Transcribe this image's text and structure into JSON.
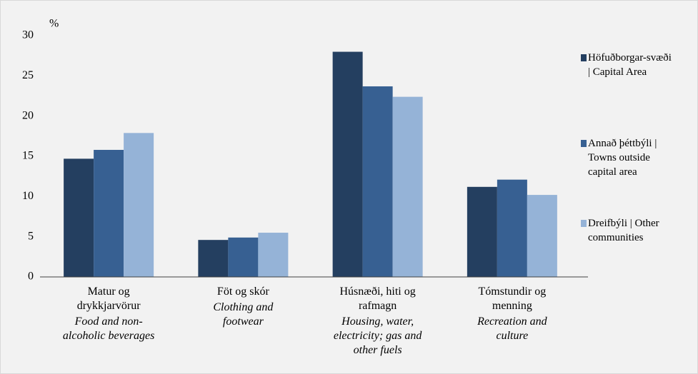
{
  "chart_data": {
    "type": "bar",
    "y_unit": "%",
    "categories": [
      "Matur og drykkjarvörur",
      "Föt og skór",
      "Húsnæði, hiti og rafmagn",
      "Tómstundir og menning"
    ],
    "categories_en": [
      "Food and non-alcoholic beverages",
      "Clothing and footwear",
      "Housing, water, electricity; gas and other fuels",
      "Recreation and culture"
    ],
    "series": [
      {
        "name": "Höfuðborgar-svæði | Capital Area",
        "color": "#243f60",
        "values": [
          14.7,
          4.6,
          28.0,
          11.2
        ]
      },
      {
        "name": "Annað þéttbýli | Towns outside capital area",
        "color": "#376092",
        "values": [
          15.8,
          4.9,
          23.7,
          12.1
        ]
      },
      {
        "name": "Dreifbýli | Other communities",
        "color": "#95b3d7",
        "values": [
          17.9,
          5.5,
          22.4,
          10.2
        ]
      }
    ],
    "ylim": [
      0,
      30
    ],
    "yticks": [
      0,
      5,
      10,
      15,
      20,
      25,
      30
    ],
    "grid": false,
    "legend": "right"
  }
}
